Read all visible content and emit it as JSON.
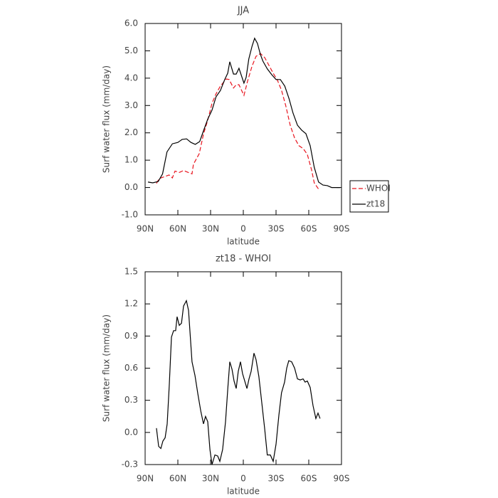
{
  "chart_data": [
    {
      "type": "line",
      "title": "JJA",
      "xlabel": "latitude",
      "ylabel": "Surf water flux (mm/day)",
      "xlim": [
        90,
        -90
      ],
      "xticks": [
        {
          "value": 90,
          "label": "90N"
        },
        {
          "value": 60,
          "label": "60N"
        },
        {
          "value": 30,
          "label": "30N"
        },
        0,
        {
          "value": -30,
          "label": "30S"
        },
        {
          "value": -60,
          "label": "60S"
        },
        {
          "value": -90,
          "label": "90S"
        }
      ],
      "ylim": [
        -1,
        6
      ],
      "yticks": [
        {
          "value": -1,
          "label": "-1.0"
        },
        {
          "value": 0,
          "label": "0.0"
        },
        {
          "value": 1,
          "label": "1.0"
        },
        {
          "value": 2,
          "label": "2.0"
        },
        {
          "value": 3,
          "label": "3.0"
        },
        {
          "value": 4,
          "label": "4.0"
        },
        {
          "value": 5,
          "label": "5.0"
        },
        {
          "value": 6,
          "label": "6.0"
        }
      ],
      "legend": "right",
      "series": [
        {
          "name": "WHOI",
          "color": "#e8141e",
          "line_style": "dashed",
          "x": [
            79.6,
            77,
            72,
            68,
            65,
            62.6,
            58.7,
            54.8,
            51,
            47,
            45.7,
            40.4,
            36.5,
            32.6,
            28.7,
            25,
            21,
            15.6,
            13,
            9,
            6.5,
            4,
            -0.6,
            -4,
            -8,
            -11.7,
            -15.7,
            -19.6,
            -23.5,
            -27.4,
            -31.3,
            -35,
            -39,
            -43,
            -47,
            -51,
            -55,
            -58.7,
            -62.6,
            -65,
            -69
          ],
          "values": [
            0.15,
            0.33,
            0.4,
            0.46,
            0.35,
            0.6,
            0.55,
            0.62,
            0.56,
            0.5,
            0.85,
            1.24,
            1.95,
            2.46,
            3.08,
            3.43,
            3.71,
            3.97,
            3.95,
            3.64,
            3.76,
            3.76,
            3.37,
            3.9,
            4.44,
            4.8,
            4.9,
            4.75,
            4.47,
            4.18,
            3.92,
            3.56,
            2.98,
            2.28,
            1.81,
            1.53,
            1.42,
            1.21,
            0.64,
            0.17,
            -0.06
          ]
        },
        {
          "name": "zt18",
          "color": "#000000",
          "line_style": "solid",
          "x": [
            87.4,
            83,
            78,
            74,
            70,
            65,
            60,
            56,
            52,
            48,
            44,
            40,
            36.5,
            32.6,
            28.7,
            25,
            21,
            17,
            14.3,
            12.4,
            9,
            6.5,
            4,
            -0.6,
            -2.6,
            -5,
            -8,
            -10.4,
            -13,
            -15.7,
            -18,
            -22,
            -26,
            -30,
            -34,
            -38,
            -42,
            -45.6,
            -49.6,
            -53.5,
            -57.4,
            -61.3,
            -65,
            -69,
            -73,
            -77,
            -81,
            -85,
            -88.7
          ],
          "values": [
            0.2,
            0.17,
            0.22,
            0.5,
            1.3,
            1.6,
            1.65,
            1.76,
            1.78,
            1.65,
            1.58,
            1.68,
            2.07,
            2.5,
            2.83,
            3.32,
            3.55,
            3.95,
            4.18,
            4.6,
            4.15,
            4.15,
            4.36,
            3.82,
            4.03,
            4.7,
            5.17,
            5.46,
            5.27,
            4.86,
            4.62,
            4.34,
            4.13,
            3.95,
            3.95,
            3.71,
            3.24,
            2.72,
            2.28,
            2.1,
            1.97,
            1.53,
            0.74,
            0.2,
            0.09,
            0.07,
            0,
            0,
            0
          ]
        }
      ]
    },
    {
      "type": "line",
      "title": "zt18 - WHOI",
      "xlabel": "latitude",
      "ylabel": "Surf water flux (mm/day)",
      "xlim": [
        90,
        -90
      ],
      "xticks": [
        {
          "value": 90,
          "label": "90N"
        },
        {
          "value": 60,
          "label": "60N"
        },
        {
          "value": 30,
          "label": "30N"
        },
        0,
        {
          "value": -30,
          "label": "30S"
        },
        {
          "value": -60,
          "label": "60S"
        },
        {
          "value": -90,
          "label": "90S"
        }
      ],
      "ylim": [
        -0.3,
        1.5
      ],
      "yticks": [
        -0.3,
        {
          "value": 0,
          "label": "0.0"
        },
        0.3,
        0.6,
        0.9,
        1.2,
        1.5
      ],
      "series": [
        {
          "color": "#000000",
          "line_style": "solid",
          "x": [
            79.6,
            77.6,
            75.6,
            73.7,
            71.7,
            69.8,
            67.8,
            65.9,
            63.9,
            62,
            60.7,
            58.7,
            56.7,
            54.8,
            52.2,
            50.2,
            47,
            44.3,
            41.7,
            39,
            36.5,
            34.6,
            32.6,
            30.6,
            28.7,
            26,
            23.5,
            21.5,
            19,
            16.3,
            14.3,
            12.4,
            10.4,
            8.5,
            6.5,
            4.6,
            2.6,
            0.7,
            -1.3,
            -3.3,
            -5.2,
            -7.2,
            -9.8,
            -11.7,
            -14.3,
            -17,
            -19.6,
            -22,
            -24.8,
            -27.4,
            -30,
            -32.6,
            -35,
            -37.8,
            -39.8,
            -41.7,
            -44.3,
            -47,
            -49.6,
            -52.2,
            -54.8,
            -56.7,
            -58.7,
            -61.3,
            -63.9,
            -66.5,
            -68.5,
            -70.4
          ],
          "values": [
            0.04,
            -0.13,
            -0.15,
            -0.08,
            -0.05,
            0.08,
            0.45,
            0.89,
            0.95,
            0.95,
            1.08,
            1.0,
            1.02,
            1.18,
            1.23,
            1.14,
            0.66,
            0.53,
            0.36,
            0.2,
            0.08,
            0.15,
            0.1,
            -0.16,
            -0.3,
            -0.21,
            -0.22,
            -0.27,
            -0.16,
            0.1,
            0.4,
            0.66,
            0.59,
            0.48,
            0.41,
            0.57,
            0.66,
            0.55,
            0.48,
            0.41,
            0.5,
            0.57,
            0.74,
            0.68,
            0.52,
            0.27,
            0.03,
            -0.21,
            -0.21,
            -0.27,
            -0.11,
            0.16,
            0.37,
            0.47,
            0.6,
            0.67,
            0.66,
            0.6,
            0.5,
            0.49,
            0.5,
            0.47,
            0.48,
            0.42,
            0.25,
            0.13,
            0.18,
            0.13
          ]
        }
      ]
    }
  ]
}
